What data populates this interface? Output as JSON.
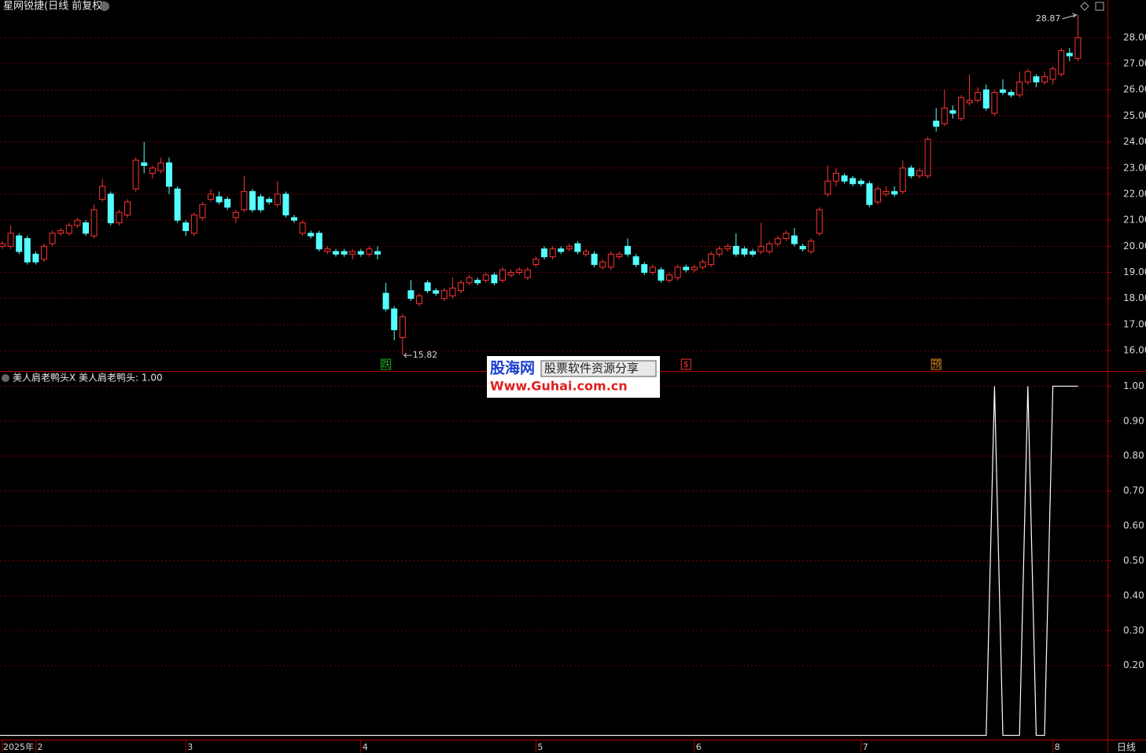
{
  "chart_data": [
    {
      "type": "candlestick",
      "title": "星网锐捷(日线 前复权)",
      "up_color": "#ff3232",
      "down_color": "#54ffff",
      "grid": true,
      "ylim": [
        15.28,
        28.99
      ],
      "yticks": [
        {
          "value": 16,
          "label": "16.00"
        },
        {
          "value": 17,
          "label": "17.00"
        },
        {
          "value": 18,
          "label": "18.00"
        },
        {
          "value": 19,
          "label": "19.00"
        },
        {
          "value": 20,
          "label": "20.00"
        },
        {
          "value": 21,
          "label": "21.00"
        },
        {
          "value": 22,
          "label": "22.00"
        },
        {
          "value": 23,
          "label": "23.00"
        },
        {
          "value": 24,
          "label": "24.00"
        },
        {
          "value": 25,
          "label": "25.00"
        },
        {
          "value": 26,
          "label": "26.00"
        },
        {
          "value": 27,
          "label": "27.00"
        },
        {
          "value": 28,
          "label": "28.00"
        }
      ],
      "ohlc": [
        [
          20.0,
          20.2,
          19.9,
          20.1
        ],
        [
          20.0,
          20.8,
          19.9,
          20.5
        ],
        [
          20.4,
          20.5,
          19.7,
          19.8
        ],
        [
          20.3,
          20.4,
          19.3,
          19.4
        ],
        [
          19.7,
          19.8,
          19.3,
          19.4
        ],
        [
          19.5,
          20.1,
          19.4,
          20.0
        ],
        [
          20.1,
          20.6,
          20.0,
          20.5
        ],
        [
          20.5,
          20.7,
          20.4,
          20.6
        ],
        [
          20.5,
          20.9,
          20.4,
          20.8
        ],
        [
          20.8,
          21.1,
          20.7,
          21.0
        ],
        [
          20.9,
          21.0,
          20.4,
          20.5
        ],
        [
          20.4,
          21.6,
          20.3,
          21.4
        ],
        [
          21.8,
          22.6,
          21.7,
          22.3
        ],
        [
          22.0,
          22.1,
          20.8,
          20.9
        ],
        [
          20.9,
          21.4,
          20.8,
          21.3
        ],
        [
          21.2,
          21.8,
          21.1,
          21.7
        ],
        [
          22.2,
          23.4,
          22.1,
          23.3
        ],
        [
          23.2,
          24.0,
          22.8,
          23.1
        ],
        [
          22.8,
          23.1,
          22.6,
          23.0
        ],
        [
          22.9,
          23.4,
          22.8,
          23.2
        ],
        [
          23.2,
          23.4,
          22.0,
          22.3
        ],
        [
          22.2,
          22.3,
          20.9,
          21.0
        ],
        [
          20.9,
          21.0,
          20.4,
          20.6
        ],
        [
          20.5,
          21.3,
          20.4,
          21.2
        ],
        [
          21.1,
          21.7,
          21.0,
          21.6
        ],
        [
          21.8,
          22.2,
          21.7,
          22.0
        ],
        [
          21.9,
          22.1,
          21.6,
          21.7
        ],
        [
          21.8,
          21.9,
          21.4,
          21.5
        ],
        [
          21.1,
          21.4,
          20.9,
          21.3
        ],
        [
          21.4,
          22.7,
          21.3,
          22.1
        ],
        [
          22.1,
          22.2,
          21.3,
          21.4
        ],
        [
          21.9,
          22.0,
          21.3,
          21.4
        ],
        [
          21.8,
          21.9,
          21.6,
          21.7
        ],
        [
          21.6,
          22.5,
          21.5,
          22.0
        ],
        [
          22.0,
          22.1,
          21.1,
          21.2
        ],
        [
          21.1,
          21.2,
          20.9,
          21.0
        ],
        [
          20.5,
          21.0,
          20.4,
          20.9
        ],
        [
          20.5,
          20.6,
          20.3,
          20.4
        ],
        [
          20.5,
          20.6,
          19.8,
          19.9
        ],
        [
          19.8,
          20.0,
          19.7,
          19.9
        ],
        [
          19.8,
          19.9,
          19.6,
          19.7
        ],
        [
          19.8,
          19.9,
          19.6,
          19.7
        ],
        [
          19.7,
          19.9,
          19.5,
          19.8
        ],
        [
          19.8,
          19.9,
          19.6,
          19.7
        ],
        [
          19.7,
          20.0,
          19.6,
          19.9
        ],
        [
          19.8,
          20.0,
          19.5,
          19.7
        ],
        [
          18.2,
          18.6,
          17.5,
          17.6
        ],
        [
          17.6,
          17.7,
          16.4,
          16.8
        ],
        [
          16.5,
          17.4,
          15.82,
          17.3
        ],
        [
          18.3,
          18.7,
          17.9,
          18.0
        ],
        [
          17.8,
          18.2,
          17.7,
          18.1
        ],
        [
          18.6,
          18.7,
          18.2,
          18.3
        ],
        [
          18.3,
          18.4,
          18.1,
          18.2
        ],
        [
          18.0,
          18.4,
          17.9,
          18.3
        ],
        [
          18.1,
          18.8,
          18.0,
          18.4
        ],
        [
          18.3,
          18.7,
          18.2,
          18.6
        ],
        [
          18.6,
          18.9,
          18.5,
          18.8
        ],
        [
          18.7,
          18.8,
          18.5,
          18.6
        ],
        [
          18.7,
          19.0,
          18.6,
          18.9
        ],
        [
          18.9,
          19.0,
          18.5,
          18.6
        ],
        [
          18.7,
          19.2,
          18.6,
          19.1
        ],
        [
          18.9,
          19.1,
          18.8,
          19.0
        ],
        [
          19.0,
          19.2,
          18.9,
          19.1
        ],
        [
          18.8,
          19.2,
          18.7,
          19.1
        ],
        [
          19.3,
          19.6,
          19.2,
          19.5
        ],
        [
          19.9,
          20.0,
          19.5,
          19.6
        ],
        [
          19.6,
          20.0,
          19.5,
          19.9
        ],
        [
          19.9,
          20.0,
          19.7,
          19.8
        ],
        [
          19.9,
          20.1,
          19.8,
          20.0
        ],
        [
          20.1,
          20.2,
          19.7,
          19.8
        ],
        [
          19.7,
          19.9,
          19.6,
          19.8
        ],
        [
          19.7,
          19.8,
          19.2,
          19.3
        ],
        [
          19.2,
          19.5,
          19.1,
          19.4
        ],
        [
          19.2,
          19.8,
          19.1,
          19.7
        ],
        [
          19.6,
          19.8,
          19.5,
          19.7
        ],
        [
          20.0,
          20.3,
          19.6,
          19.7
        ],
        [
          19.6,
          19.7,
          19.2,
          19.3
        ],
        [
          19.3,
          19.4,
          18.9,
          19.0
        ],
        [
          19.0,
          19.3,
          18.9,
          19.2
        ],
        [
          19.1,
          19.2,
          18.6,
          18.7
        ],
        [
          18.7,
          19.0,
          18.6,
          18.9
        ],
        [
          18.8,
          19.3,
          18.7,
          19.2
        ],
        [
          19.2,
          19.3,
          19.0,
          19.1
        ],
        [
          19.1,
          19.3,
          19.0,
          19.2
        ],
        [
          19.2,
          19.5,
          19.1,
          19.4
        ],
        [
          19.3,
          19.8,
          19.2,
          19.7
        ],
        [
          19.7,
          20.0,
          19.6,
          19.9
        ],
        [
          19.9,
          20.1,
          19.8,
          20.0
        ],
        [
          20.0,
          20.5,
          19.6,
          19.7
        ],
        [
          19.9,
          20.0,
          19.6,
          19.7
        ],
        [
          19.8,
          19.9,
          19.6,
          19.7
        ],
        [
          19.8,
          20.9,
          19.7,
          20.0
        ],
        [
          19.8,
          20.2,
          19.7,
          20.1
        ],
        [
          20.1,
          20.4,
          20.0,
          20.3
        ],
        [
          20.3,
          20.6,
          20.2,
          20.5
        ],
        [
          20.4,
          20.7,
          20.0,
          20.1
        ],
        [
          20.0,
          20.1,
          19.8,
          19.9
        ],
        [
          19.8,
          20.3,
          19.7,
          20.2
        ],
        [
          20.5,
          21.5,
          20.4,
          21.4
        ],
        [
          22.0,
          23.1,
          21.9,
          22.5
        ],
        [
          22.5,
          23.0,
          22.3,
          22.8
        ],
        [
          22.7,
          22.8,
          22.4,
          22.5
        ],
        [
          22.6,
          22.7,
          22.3,
          22.4
        ],
        [
          22.5,
          22.6,
          22.3,
          22.4
        ],
        [
          22.4,
          22.5,
          21.5,
          21.6
        ],
        [
          21.7,
          22.3,
          21.6,
          22.2
        ],
        [
          22.0,
          22.3,
          21.9,
          22.1
        ],
        [
          22.1,
          22.3,
          21.9,
          22.0
        ],
        [
          22.1,
          23.3,
          22.0,
          23.0
        ],
        [
          23.0,
          23.1,
          22.6,
          22.7
        ],
        [
          22.7,
          23.0,
          22.6,
          22.9
        ],
        [
          22.7,
          24.2,
          22.6,
          24.1
        ],
        [
          24.8,
          25.3,
          24.4,
          24.6
        ],
        [
          24.7,
          26.0,
          24.6,
          25.3
        ],
        [
          25.2,
          25.4,
          24.9,
          25.1
        ],
        [
          24.9,
          25.8,
          24.8,
          25.7
        ],
        [
          25.5,
          26.6,
          25.4,
          25.6
        ],
        [
          25.6,
          26.1,
          25.5,
          25.9
        ],
        [
          26.0,
          26.2,
          25.2,
          25.3
        ],
        [
          25.1,
          26.0,
          25.0,
          25.9
        ],
        [
          26.0,
          26.4,
          25.8,
          25.9
        ],
        [
          25.9,
          26.0,
          25.7,
          25.8
        ],
        [
          25.8,
          26.7,
          25.7,
          26.3
        ],
        [
          26.3,
          26.8,
          26.2,
          26.7
        ],
        [
          26.5,
          26.6,
          26.1,
          26.3
        ],
        [
          26.3,
          26.7,
          26.2,
          26.5
        ],
        [
          26.4,
          26.9,
          26.2,
          26.8
        ],
        [
          26.6,
          27.6,
          26.5,
          27.5
        ],
        [
          27.4,
          27.6,
          27.1,
          27.3
        ],
        [
          27.2,
          28.87,
          27.1,
          28.0
        ]
      ],
      "signals": [
        null,
        null,
        null,
        null,
        null,
        null,
        null,
        null,
        null,
        null,
        null,
        null,
        null,
        null,
        null,
        null,
        null,
        null,
        null,
        null,
        null,
        null,
        null,
        null,
        null,
        null,
        null,
        null,
        null,
        null,
        null,
        null,
        null,
        null,
        null,
        null,
        null,
        null,
        null,
        null,
        null,
        null,
        null,
        null,
        null,
        null,
        {
          "label": "跌",
          "color": "#22b022"
        },
        null,
        null,
        null,
        null,
        null,
        null,
        null,
        null,
        null,
        null,
        null,
        null,
        null,
        null,
        null,
        null,
        null,
        null,
        null,
        null,
        null,
        null,
        null,
        null,
        null,
        null,
        null,
        null,
        null,
        null,
        null,
        null,
        null,
        null,
        null,
        {
          "label": "$",
          "color": "#ff3232"
        },
        null,
        null,
        null,
        null,
        null,
        null,
        null,
        null,
        null,
        null,
        null,
        null,
        null,
        null,
        null,
        null,
        null,
        null,
        null,
        null,
        null,
        null,
        null,
        null,
        null,
        null,
        null,
        null,
        null,
        {
          "label": "预",
          "color": "#e08a20"
        },
        null,
        null,
        null,
        null,
        null,
        null,
        null,
        null,
        null,
        null,
        null,
        null,
        null,
        null,
        null,
        null,
        null
      ]
    },
    {
      "type": "line",
      "title": "美人肩老鸭头X 美人肩老鸭头: 1.00",
      "color": "#ffffff",
      "grid": true,
      "period_label": "日线",
      "ylim": [
        -0.01,
        1.03
      ],
      "yticks": [
        {
          "value": 0.2,
          "label": "0.20"
        },
        {
          "value": 0.3,
          "label": "0.30"
        },
        {
          "value": 0.4,
          "label": "0.40"
        },
        {
          "value": 0.5,
          "label": "0.50"
        },
        {
          "value": 0.6,
          "label": "0.60"
        },
        {
          "value": 0.7,
          "label": "0.70"
        },
        {
          "value": 0.8,
          "label": "0.80"
        },
        {
          "value": 0.9,
          "label": "0.90"
        },
        {
          "value": 1,
          "label": "1.00"
        }
      ],
      "categories": [
        "2025年",
        null,
        null,
        null,
        "2",
        null,
        null,
        null,
        null,
        null,
        null,
        null,
        null,
        null,
        null,
        null,
        null,
        null,
        null,
        null,
        null,
        null,
        "3",
        null,
        null,
        null,
        null,
        null,
        null,
        null,
        null,
        null,
        null,
        null,
        null,
        null,
        null,
        null,
        null,
        null,
        null,
        null,
        null,
        "4",
        null,
        null,
        null,
        null,
        null,
        null,
        null,
        null,
        null,
        null,
        null,
        null,
        null,
        null,
        null,
        null,
        null,
        null,
        null,
        null,
        "5",
        null,
        null,
        null,
        null,
        null,
        null,
        null,
        null,
        null,
        null,
        null,
        null,
        null,
        null,
        null,
        null,
        null,
        null,
        "6",
        null,
        null,
        null,
        null,
        null,
        null,
        null,
        null,
        null,
        null,
        null,
        null,
        null,
        null,
        null,
        null,
        null,
        null,
        null,
        "7",
        null,
        null,
        null,
        null,
        null,
        null,
        null,
        null,
        null,
        null,
        null,
        null,
        null,
        null,
        null,
        null,
        null,
        null,
        null,
        null,
        null,
        null,
        "8",
        null,
        null,
        null
      ],
      "values": [
        0,
        0,
        0,
        0,
        0,
        0,
        0,
        0,
        0,
        0,
        0,
        0,
        0,
        0,
        0,
        0,
        0,
        0,
        0,
        0,
        0,
        0,
        0,
        0,
        0,
        0,
        0,
        0,
        0,
        0,
        0,
        0,
        0,
        0,
        0,
        0,
        0,
        0,
        0,
        0,
        0,
        0,
        0,
        0,
        0,
        0,
        0,
        0,
        0,
        0,
        0,
        0,
        0,
        0,
        0,
        0,
        0,
        0,
        0,
        0,
        0,
        0,
        0,
        0,
        0,
        0,
        0,
        0,
        0,
        0,
        0,
        0,
        0,
        0,
        0,
        0,
        0,
        0,
        0,
        0,
        0,
        0,
        0,
        0,
        0,
        0,
        0,
        0,
        0,
        0,
        0,
        0,
        0,
        0,
        0,
        0,
        0,
        0,
        0,
        0,
        0,
        0,
        0,
        0,
        0,
        0,
        0,
        0,
        0,
        0,
        0,
        0,
        0,
        0,
        0,
        0,
        0,
        0,
        0,
        1,
        0,
        0,
        0,
        1,
        0,
        0,
        1,
        1,
        1,
        1
      ]
    }
  ],
  "watermark": {
    "brand": "股海网",
    "slogan": "股票软件资源分享",
    "url": "Www.Guhai.com.cn"
  }
}
